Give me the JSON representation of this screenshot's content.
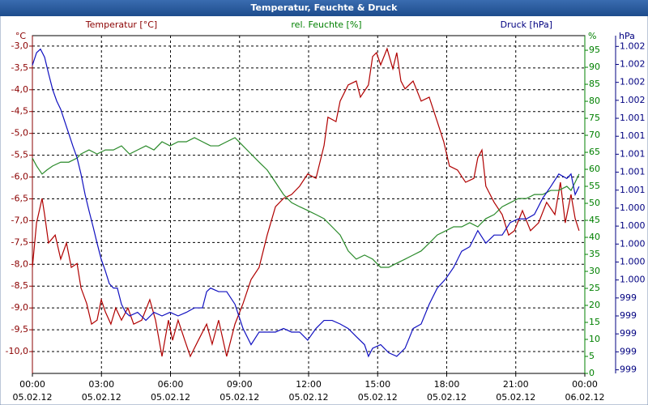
{
  "chart_data": {
    "type": "line",
    "title": "Temperatur, Feuchte & Druck",
    "y_unit": "°C",
    "y2_unit": "%",
    "y3_unit": "hPa",
    "xlim": [
      0,
      24
    ],
    "xticks": [
      {
        "value": 0,
        "label": "00:00"
      },
      {
        "value": 3,
        "label": "03:00"
      },
      {
        "value": 6,
        "label": "06:00"
      },
      {
        "value": 9,
        "label": "09:00"
      },
      {
        "value": 12,
        "label": "12:00"
      },
      {
        "value": 15,
        "label": "15:00"
      },
      {
        "value": 18,
        "label": "18:00"
      },
      {
        "value": 21,
        "label": "21:00"
      },
      {
        "value": 24,
        "label": "00:00"
      }
    ],
    "xtick_dates": [
      "05.02.12",
      "05.02.12",
      "05.02.12",
      "05.02.12",
      "05.02.12",
      "05.02.12",
      "05.02.12",
      "05.02.12",
      "06.02.12"
    ],
    "ylim": [
      -10.5,
      -2.76
    ],
    "yticks": [
      {
        "value": -3,
        "label": "-3,0"
      },
      {
        "value": -3.5,
        "label": "-3,5"
      },
      {
        "value": -4,
        "label": "-4,0"
      },
      {
        "value": -4.5,
        "label": "-4,5"
      },
      {
        "value": -5,
        "label": "-5,0"
      },
      {
        "value": -5.5,
        "label": "-5,5"
      },
      {
        "value": -6,
        "label": "-6,0"
      },
      {
        "value": -6.5,
        "label": "-6,5"
      },
      {
        "value": -7,
        "label": "-7,0"
      },
      {
        "value": -7.5,
        "label": "-7,5"
      },
      {
        "value": -8,
        "label": "-8,0"
      },
      {
        "value": -8.5,
        "label": "-8,5"
      },
      {
        "value": -9,
        "label": "-9,0"
      },
      {
        "value": -9.5,
        "label": "-9,5"
      },
      {
        "value": -10,
        "label": "-10,0"
      }
    ],
    "y2lim": [
      0,
      99.3
    ],
    "y2ticks": [
      0,
      5,
      10,
      15,
      20,
      25,
      30,
      35,
      40,
      45,
      50,
      55,
      60,
      65,
      70,
      75,
      80,
      85,
      90,
      95
    ],
    "y3lim": [
      998.56,
      1002.32
    ],
    "y3ticks": [
      {
        "value": 998.6,
        "label": "999"
      },
      {
        "value": 998.8,
        "label": "999"
      },
      {
        "value": 999.0,
        "label": "999"
      },
      {
        "value": 999.2,
        "label": "999"
      },
      {
        "value": 999.4,
        "label": "999"
      },
      {
        "value": 999.6,
        "label": "1.000"
      },
      {
        "value": 999.8,
        "label": "1.000"
      },
      {
        "value": 1000.0,
        "label": "1.000"
      },
      {
        "value": 1000.2,
        "label": "1.000"
      },
      {
        "value": 1000.4,
        "label": "1.000"
      },
      {
        "value": 1000.6,
        "label": "1.001"
      },
      {
        "value": 1000.8,
        "label": "1.001"
      },
      {
        "value": 1001.0,
        "label": "1.001"
      },
      {
        "value": 1001.2,
        "label": "1.001"
      },
      {
        "value": 1001.4,
        "label": "1.001"
      },
      {
        "value": 1001.6,
        "label": "1.002"
      },
      {
        "value": 1001.8,
        "label": "1.002"
      },
      {
        "value": 1002.0,
        "label": "1.002"
      },
      {
        "value": 1002.2,
        "label": "1.002"
      }
    ],
    "grid": true,
    "series": [
      {
        "name": "Temperatur [°C]",
        "color": "#b00000",
        "axis": "y",
        "x": [
          0,
          0.18,
          0.42,
          0.53,
          0.7,
          0.99,
          1.23,
          1.48,
          1.69,
          1.94,
          2.11,
          2.36,
          2.57,
          2.81,
          2.99,
          3.17,
          3.41,
          3.62,
          3.87,
          4.15,
          4.4,
          4.75,
          5.1,
          5.35,
          5.63,
          5.91,
          6.09,
          6.33,
          6.62,
          6.86,
          7.21,
          7.57,
          7.81,
          8.09,
          8.44,
          8.8,
          9.15,
          9.5,
          9.85,
          10.2,
          10.56,
          10.91,
          11.26,
          11.61,
          11.96,
          12.32,
          12.67,
          12.84,
          13.19,
          13.37,
          13.72,
          14.07,
          14.25,
          14.6,
          14.78,
          14.95,
          15.13,
          15.41,
          15.66,
          15.83,
          16.01,
          16.19,
          16.54,
          16.89,
          17.24,
          17.59,
          17.87,
          18.12,
          18.47,
          18.82,
          19.18,
          19.35,
          19.53,
          19.7,
          20.06,
          20.41,
          20.69,
          20.94,
          21.29,
          21.64,
          21.99,
          22.34,
          22.7,
          22.94,
          23.15,
          23.4,
          23.58,
          23.75
        ],
        "values": [
          -8.07,
          -7.05,
          -6.49,
          -6.86,
          -7.51,
          -7.33,
          -7.88,
          -7.51,
          -8.07,
          -7.98,
          -8.54,
          -8.9,
          -9.37,
          -9.28,
          -8.81,
          -9.09,
          -9.37,
          -9.0,
          -9.28,
          -9.0,
          -9.37,
          -9.28,
          -8.81,
          -9.28,
          -10.11,
          -9.28,
          -9.74,
          -9.28,
          -9.74,
          -10.11,
          -9.74,
          -9.37,
          -9.83,
          -9.28,
          -10.11,
          -9.37,
          -8.9,
          -8.35,
          -8.07,
          -7.33,
          -6.68,
          -6.49,
          -6.4,
          -6.21,
          -5.93,
          -6.03,
          -5.28,
          -4.63,
          -4.73,
          -4.26,
          -3.89,
          -3.8,
          -4.17,
          -3.89,
          -3.24,
          -3.15,
          -3.43,
          -3.06,
          -3.52,
          -3.15,
          -3.8,
          -3.98,
          -3.8,
          -4.26,
          -4.17,
          -4.73,
          -5.19,
          -5.75,
          -5.84,
          -6.12,
          -6.03,
          -5.56,
          -5.38,
          -6.21,
          -6.58,
          -6.86,
          -7.33,
          -7.23,
          -6.77,
          -7.23,
          -7.05,
          -6.58,
          -6.86,
          -6.12,
          -7.05,
          -6.4,
          -6.95,
          -7.23
        ]
      },
      {
        "name": "rel. Feuchte [%]",
        "color": "#2a8a2a",
        "axis": "y2",
        "x": [
          0,
          0.18,
          0.42,
          0.63,
          0.88,
          1.23,
          1.58,
          1.94,
          2.11,
          2.46,
          2.81,
          3.17,
          3.52,
          3.87,
          4.22,
          4.57,
          4.93,
          5.28,
          5.63,
          5.98,
          6.33,
          6.69,
          7.04,
          7.39,
          7.74,
          8.09,
          8.44,
          8.8,
          9.15,
          9.5,
          9.85,
          10.2,
          10.56,
          10.91,
          11.26,
          11.61,
          11.96,
          12.32,
          12.67,
          13.02,
          13.37,
          13.72,
          14.07,
          14.43,
          14.78,
          15.13,
          15.48,
          15.83,
          16.19,
          16.54,
          16.89,
          17.24,
          17.59,
          17.95,
          18.3,
          18.65,
          19.0,
          19.35,
          19.7,
          20.06,
          20.41,
          20.76,
          21.11,
          21.46,
          21.81,
          22.17,
          22.52,
          22.87,
          23.22,
          23.4,
          23.58,
          23.75
        ],
        "values": [
          63.3,
          61.0,
          58.6,
          59.8,
          61.0,
          62.1,
          62.1,
          63.3,
          64.5,
          65.7,
          64.5,
          65.7,
          65.7,
          66.9,
          64.5,
          65.7,
          66.9,
          65.7,
          68.1,
          66.9,
          68.1,
          68.1,
          69.3,
          68.1,
          66.9,
          66.9,
          68.1,
          69.3,
          66.9,
          64.5,
          62.1,
          59.8,
          56.2,
          52.6,
          50.2,
          49.0,
          47.9,
          46.7,
          45.5,
          43.1,
          40.7,
          36.0,
          33.6,
          34.8,
          33.6,
          31.2,
          31.2,
          32.4,
          33.6,
          34.8,
          36.0,
          38.3,
          40.7,
          41.9,
          43.1,
          43.1,
          44.3,
          43.1,
          45.5,
          46.7,
          49.0,
          50.2,
          51.4,
          51.4,
          52.6,
          52.6,
          53.8,
          53.8,
          55.0,
          53.8,
          56.2,
          58.6
        ]
      },
      {
        "name": "Druck [hPa]",
        "color": "#1010c0",
        "axis": "y3",
        "x": [
          0,
          0.18,
          0.35,
          0.53,
          0.7,
          0.88,
          1.06,
          1.23,
          1.41,
          1.58,
          1.76,
          1.94,
          2.11,
          2.29,
          2.46,
          2.64,
          2.81,
          2.99,
          3.17,
          3.34,
          3.52,
          3.69,
          3.87,
          4.05,
          4.22,
          4.57,
          4.93,
          5.28,
          5.63,
          5.98,
          6.33,
          6.69,
          7.04,
          7.39,
          7.57,
          7.74,
          8.09,
          8.44,
          8.8,
          9.15,
          9.5,
          9.85,
          10.2,
          10.56,
          10.91,
          11.26,
          11.61,
          11.96,
          12.32,
          12.67,
          13.02,
          13.37,
          13.72,
          14.07,
          14.43,
          14.6,
          14.78,
          15.13,
          15.48,
          15.83,
          16.19,
          16.54,
          16.89,
          17.24,
          17.59,
          17.95,
          18.3,
          18.65,
          19.0,
          19.35,
          19.7,
          20.06,
          20.41,
          20.76,
          21.11,
          21.46,
          21.81,
          22.17,
          22.52,
          22.87,
          23.22,
          23.4,
          23.58,
          23.75
        ],
        "values": [
          1001.99,
          1002.13,
          1002.17,
          1002.08,
          1001.9,
          1001.72,
          1001.59,
          1001.5,
          1001.36,
          1001.23,
          1001.09,
          1000.96,
          1000.78,
          1000.55,
          1000.37,
          1000.19,
          1000.01,
          999.83,
          999.7,
          999.56,
          999.51,
          999.51,
          999.33,
          999.24,
          999.2,
          999.24,
          999.15,
          999.24,
          999.2,
          999.24,
          999.2,
          999.24,
          999.29,
          999.29,
          999.47,
          999.51,
          999.47,
          999.47,
          999.33,
          999.06,
          998.88,
          999.02,
          999.02,
          999.02,
          999.06,
          999.02,
          999.02,
          998.93,
          999.06,
          999.15,
          999.15,
          999.11,
          999.06,
          998.97,
          998.88,
          998.75,
          998.84,
          998.88,
          998.79,
          998.75,
          998.84,
          999.06,
          999.11,
          999.33,
          999.51,
          999.61,
          999.74,
          999.92,
          999.97,
          1000.15,
          1000.01,
          1000.1,
          1000.1,
          1000.24,
          1000.28,
          1000.28,
          1000.33,
          1000.51,
          1000.64,
          1000.78,
          1000.73,
          1000.78,
          1000.55,
          1000.64
        ]
      }
    ]
  }
}
